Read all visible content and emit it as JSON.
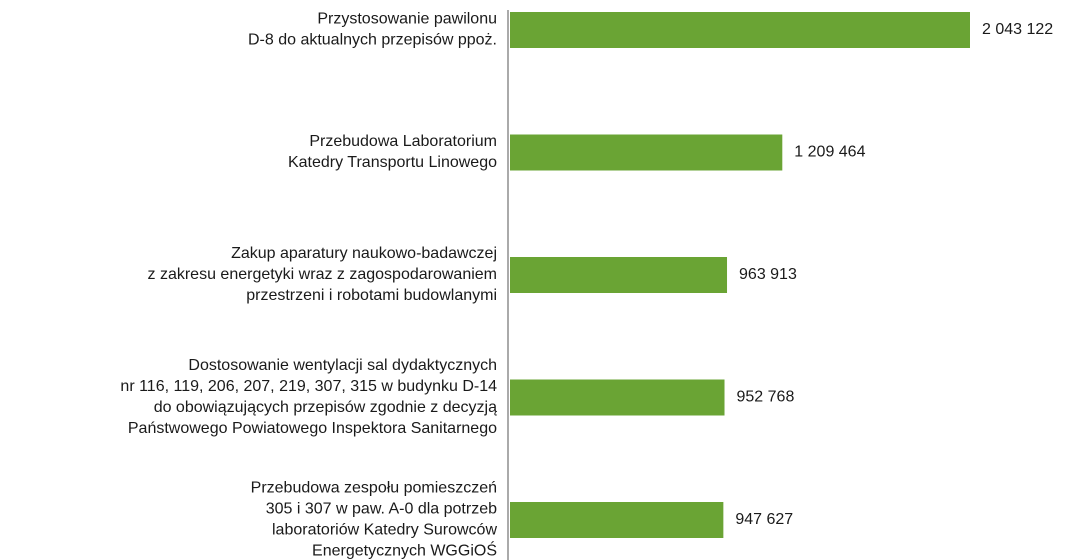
{
  "chart_data": {
    "type": "barh",
    "categories": [
      [
        "Przystosowanie pawilonu",
        "D-8 do aktualnych przepisów ppoż."
      ],
      [
        "Przebudowa Laboratorium",
        "Katedry Transportu Linowego"
      ],
      [
        "Zakup aparatury naukowo-badawczej",
        "z zakresu energetyki wraz z zagospodarowaniem",
        "przestrzeni i robotami budowlanymi"
      ],
      [
        "Dostosowanie wentylacji sal dydaktycznych",
        "nr 116, 119, 206, 207, 219, 307, 315 w budynku D-14",
        "do obowiązujących przepisów zgodnie z decyzją",
        "Państwowego Powiatowego Inspektora Sanitarnego"
      ],
      [
        "Przebudowa zespołu pomieszczeń",
        "305 i 307 w paw. A-0 dla potrzeb",
        "laboratoriów Katedry Surowców",
        "Energetycznych WGGiOŚ"
      ]
    ],
    "values": [
      2043122,
      1209464,
      963913,
      952768,
      947627
    ],
    "value_labels": [
      "2 043 122",
      "1 209 464",
      "963 913",
      "952 768",
      "947 627"
    ],
    "color": "#6aa434"
  }
}
